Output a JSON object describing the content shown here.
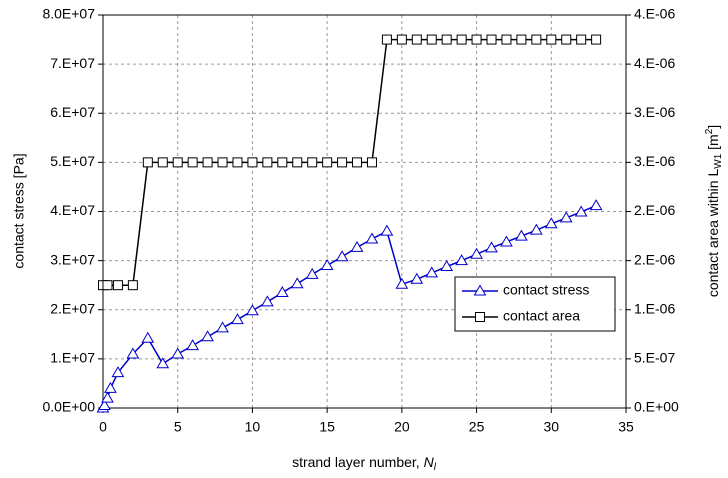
{
  "chart_data": {
    "type": "line",
    "x_label": "strand layer number,",
    "x_label_symbol": "N",
    "x_label_subscript": "l",
    "y_label": "contact stress [Pa]",
    "y2_label": "contact area within L",
    "y2_label_subscript": "W1",
    "y2_label_unit": "[m",
    "y2_label_sup": "2",
    "y2_label_end": "]",
    "xlim": [
      0,
      35
    ],
    "xticks": [
      0,
      5,
      10,
      15,
      20,
      25,
      30,
      35
    ],
    "ylim": [
      0,
      80000000
    ],
    "yticks": [
      {
        "value": 0,
        "label": "0.0E+00"
      },
      {
        "value": 10000000,
        "label": "1.E+07"
      },
      {
        "value": 20000000,
        "label": "2.E+07"
      },
      {
        "value": 30000000,
        "label": "3.E+07"
      },
      {
        "value": 40000000,
        "label": "4.E+07"
      },
      {
        "value": 50000000,
        "label": "5.E+07"
      },
      {
        "value": 60000000,
        "label": "6.E+07"
      },
      {
        "value": 70000000,
        "label": "7.E+07"
      },
      {
        "value": 80000000,
        "label": "8.0E+07"
      }
    ],
    "y2lim": [
      0,
      4e-06
    ],
    "y2ticks": [
      {
        "value": 0,
        "label": "0.E+00"
      },
      {
        "value": 5e-07,
        "label": "5.E-07"
      },
      {
        "value": 1e-06,
        "label": "1.E-06"
      },
      {
        "value": 1.5e-06,
        "label": "2.E-06"
      },
      {
        "value": 2e-06,
        "label": "2.E-06"
      },
      {
        "value": 2.5e-06,
        "label": "3.E-06"
      },
      {
        "value": 3e-06,
        "label": "3.E-06"
      },
      {
        "value": 3.5e-06,
        "label": "4.E-06"
      },
      {
        "value": 4e-06,
        "label": "4.E-06"
      }
    ],
    "grid": true,
    "legend": "lower right",
    "series": [
      {
        "name": "contact stress",
        "color": "#0000cc",
        "marker": "triangle",
        "x": [
          0,
          0.1,
          0.3,
          0.5,
          1,
          2,
          3,
          4,
          5,
          6,
          7,
          8,
          9,
          10,
          11,
          12,
          13,
          14,
          15,
          16,
          17,
          18,
          19,
          20,
          21,
          22,
          23,
          24,
          25,
          26,
          27,
          28,
          29,
          30,
          31,
          32,
          33
        ],
        "values": [
          0,
          500000,
          2000000,
          4000000,
          7200000,
          11000000,
          14200000,
          9000000,
          11000000,
          12700000,
          14500000,
          16300000,
          18000000,
          19800000,
          21600000,
          23500000,
          25300000,
          27200000,
          29000000,
          30800000,
          32700000,
          34400000,
          36000000,
          25200000,
          26200000,
          27500000,
          28800000,
          30000000,
          31300000,
          32600000,
          33800000,
          35000000,
          36200000,
          37500000,
          38700000,
          39900000,
          41200000
        ]
      },
      {
        "name": "contact area",
        "color": "#000000",
        "marker": "square",
        "axis": "y2",
        "x": [
          0,
          0.3,
          1,
          2,
          3,
          4,
          5,
          6,
          7,
          8,
          9,
          10,
          11,
          12,
          13,
          14,
          15,
          16,
          17,
          18,
          19,
          20,
          21,
          22,
          23,
          24,
          25,
          26,
          27,
          28,
          29,
          30,
          31,
          32,
          33
        ],
        "values": [
          1.25e-06,
          1.25e-06,
          1.25e-06,
          1.25e-06,
          2.5e-06,
          2.5e-06,
          2.5e-06,
          2.5e-06,
          2.5e-06,
          2.5e-06,
          2.5e-06,
          2.5e-06,
          2.5e-06,
          2.5e-06,
          2.5e-06,
          2.5e-06,
          2.5e-06,
          2.5e-06,
          2.5e-06,
          2.5e-06,
          3.75e-06,
          3.75e-06,
          3.75e-06,
          3.75e-06,
          3.75e-06,
          3.75e-06,
          3.75e-06,
          3.75e-06,
          3.75e-06,
          3.75e-06,
          3.75e-06,
          3.75e-06,
          3.75e-06,
          3.75e-06,
          3.75e-06
        ]
      }
    ]
  }
}
